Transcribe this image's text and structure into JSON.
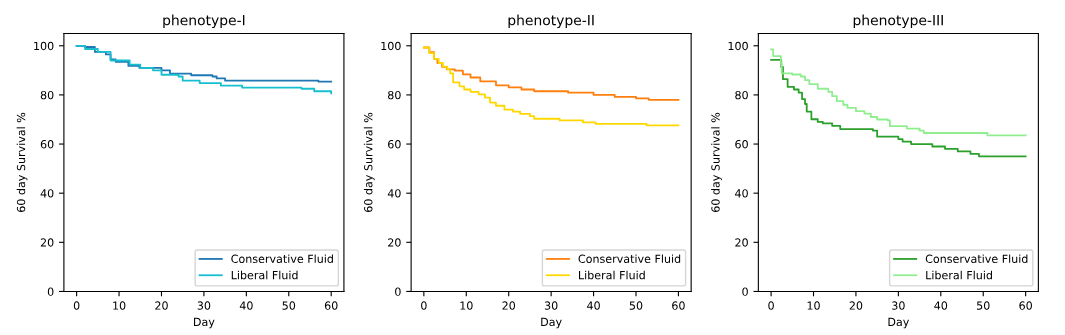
{
  "chart_data": [
    {
      "type": "step",
      "title": "phenotype-I",
      "xlabel": "Day",
      "ylabel": "60 day Survival %",
      "xlim": [
        -3,
        63
      ],
      "ylim": [
        0,
        105
      ],
      "xticks": [
        0,
        10,
        20,
        30,
        40,
        50,
        60
      ],
      "yticks": [
        0,
        20,
        40,
        60,
        80,
        100
      ],
      "legend": "bottom right",
      "grid": false,
      "series": [
        {
          "name": "Conservative Fluid",
          "color": "#1f77b4",
          "x": [
            0,
            2,
            4.3,
            6.9,
            8,
            9.2,
            12.2,
            14.8,
            20,
            22,
            27,
            32,
            33,
            35,
            57,
            60
          ],
          "values": [
            100,
            99.5,
            97.5,
            96.5,
            94.5,
            93.5,
            91.8,
            91,
            90,
            88.7,
            88,
            87.5,
            86.7,
            85.8,
            85.4,
            85.4
          ]
        },
        {
          "name": "Liberal Fluid",
          "color": "#17becf",
          "x": [
            0,
            2,
            5,
            8,
            12.5,
            15,
            18,
            20,
            24,
            25,
            29,
            34,
            39,
            53,
            56,
            60
          ],
          "values": [
            100,
            98.7,
            97.5,
            94,
            92.3,
            91,
            90,
            88.2,
            87.5,
            85.8,
            84.8,
            83.8,
            83,
            82.5,
            81.5,
            80.6
          ]
        }
      ]
    },
    {
      "type": "step",
      "title": "phenotype-II",
      "xlabel": "Day",
      "ylabel": "60 day Survival %",
      "xlim": [
        -3,
        63
      ],
      "ylim": [
        0,
        105
      ],
      "xticks": [
        0,
        10,
        20,
        30,
        40,
        50,
        60
      ],
      "yticks": [
        0,
        20,
        40,
        60,
        80,
        100
      ],
      "legend": "bottom right",
      "grid": false,
      "series": [
        {
          "name": "Conservative Fluid",
          "color": "#ff7f0e",
          "x": [
            0,
            1.3,
            2.4,
            3.2,
            4.3,
            5.4,
            7.3,
            9.2,
            11,
            13.3,
            17,
            20,
            23,
            26,
            34,
            40,
            45,
            50,
            53,
            60
          ],
          "values": [
            99.3,
            97.4,
            94.7,
            93,
            91.4,
            90.4,
            89.9,
            88.4,
            87.1,
            85.5,
            83.9,
            83.1,
            82.2,
            81.5,
            80.9,
            80,
            79.2,
            78.6,
            78,
            78
          ]
        },
        {
          "name": "Liberal Fluid",
          "color": "#ffd700",
          "x": [
            0,
            1.3,
            2.4,
            3.5,
            4.5,
            5.5,
            6.2,
            6.9,
            8.4,
            9.5,
            11,
            12.9,
            14.4,
            15.6,
            17,
            19,
            21,
            22.7,
            25,
            26,
            32,
            37.5,
            40.5,
            52.5,
            60
          ],
          "values": [
            99.3,
            97,
            94.7,
            93,
            91.5,
            90.5,
            88.8,
            85.1,
            83.5,
            82.2,
            81.2,
            80.2,
            78.9,
            76.9,
            75.6,
            74,
            73.2,
            72.3,
            71.4,
            70.3,
            69.6,
            68.8,
            68.2,
            67.6,
            67.6
          ]
        }
      ]
    },
    {
      "type": "step",
      "title": "phenotype-III",
      "xlabel": "Day",
      "ylabel": "60 day Survival %",
      "xlim": [
        -3,
        63
      ],
      "ylim": [
        0,
        105
      ],
      "xticks": [
        0,
        10,
        20,
        30,
        40,
        50,
        60
      ],
      "yticks": [
        0,
        20,
        40,
        60,
        80,
        100
      ],
      "legend": "bottom right",
      "grid": false,
      "series": [
        {
          "name": "Conservative Fluid",
          "color": "#2ca02c",
          "x": [
            0,
            1.3,
            2.4,
            2.8,
            3.9,
            5.4,
            6.5,
            7.3,
            8,
            8.4,
            9.5,
            11,
            12.2,
            14.4,
            16.3,
            24,
            25,
            30,
            31,
            33,
            38,
            41,
            44,
            47,
            49,
            60
          ],
          "values": [
            94.3,
            94.3,
            91.4,
            86.4,
            83.3,
            82.2,
            80.9,
            78.3,
            76.3,
            73.2,
            70.1,
            69,
            68.4,
            67.4,
            66.1,
            65.5,
            63,
            62,
            61,
            60,
            59,
            58,
            57,
            56,
            55,
            55
          ]
        },
        {
          "name": "Liberal Fluid",
          "color": "#90ee90",
          "x": [
            0,
            0.5,
            2.3,
            2.5,
            5,
            7,
            8,
            9,
            11,
            13.5,
            14.4,
            15.5,
            17,
            18,
            20,
            22,
            23.5,
            25,
            27.5,
            28,
            32,
            35,
            36,
            51,
            60
          ],
          "values": [
            98.5,
            95.8,
            93,
            88.8,
            88.3,
            87.5,
            86,
            84.4,
            82.5,
            81.2,
            79.5,
            77.5,
            76,
            74.7,
            73.4,
            72.4,
            71,
            70,
            69.6,
            67.3,
            66.3,
            65.5,
            64.5,
            63.5,
            63.5
          ]
        }
      ]
    }
  ]
}
